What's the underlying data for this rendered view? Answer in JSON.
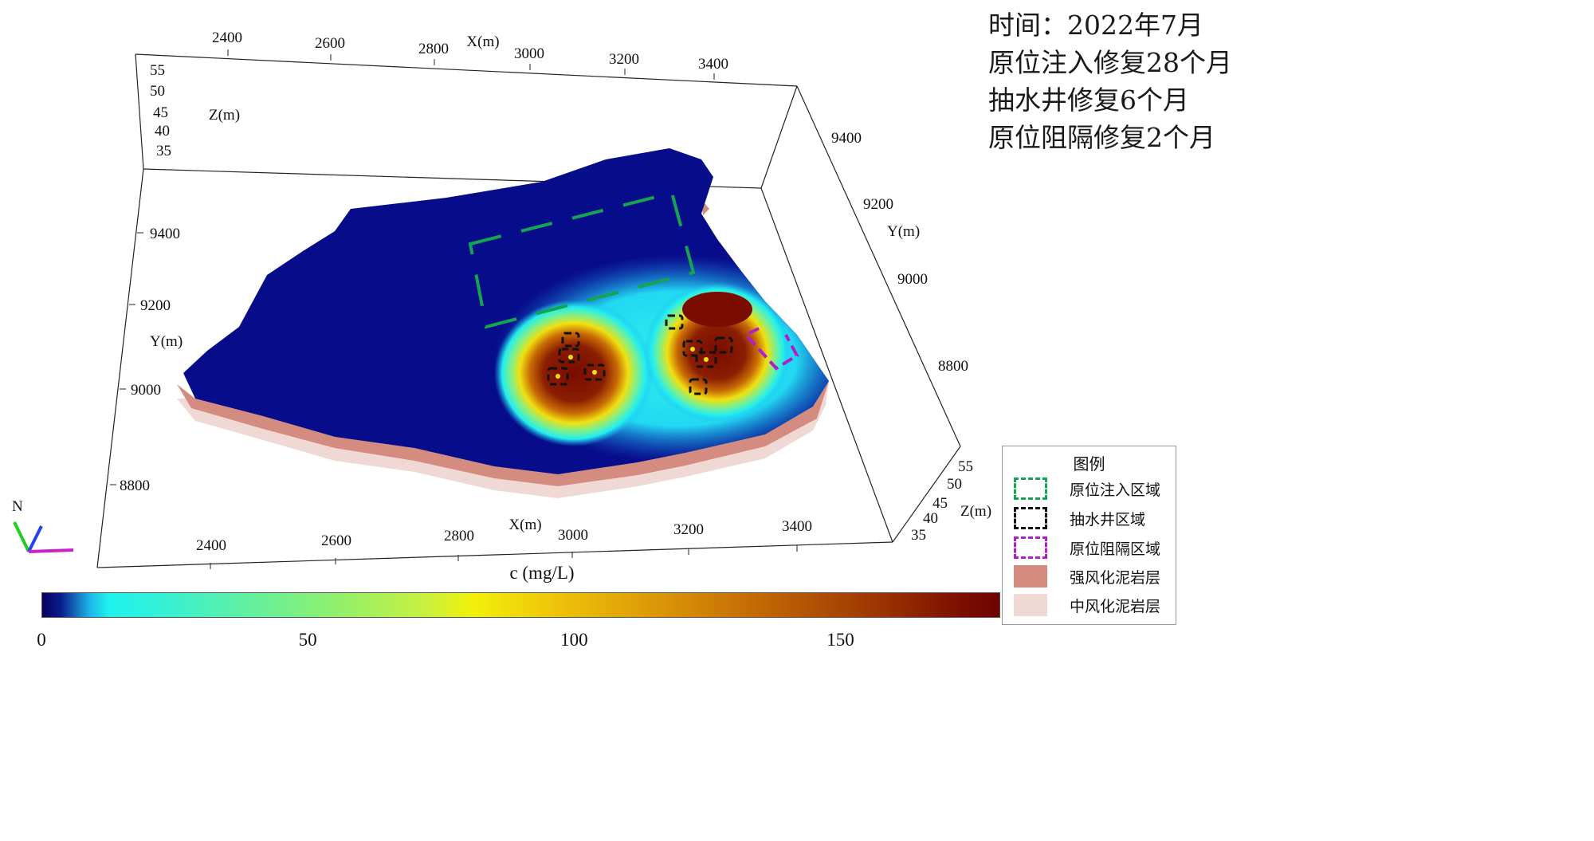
{
  "info": {
    "lines": [
      "时间：2022年7月",
      "原位注入修复28个月",
      "抽水井修复6个月",
      "原位阻隔修复2个月"
    ]
  },
  "axes": {
    "top_x_ticks": [
      "2400",
      "2600",
      "2800",
      "3000",
      "3200",
      "3400"
    ],
    "top_x_label": "X(m)",
    "bottom_x_ticks": [
      "2400",
      "2600",
      "2800",
      "3000",
      "3200",
      "3400"
    ],
    "bottom_x_label": "X(m)",
    "left_y_ticks": [
      "9400",
      "9200",
      "9000",
      "8800"
    ],
    "left_y_label": "Y(m)",
    "right_y_ticks": [
      "9400",
      "9200",
      "9000",
      "8800"
    ],
    "right_y_label": "Y(m)",
    "left_z_ticks": [
      "55",
      "50",
      "45",
      "40",
      "35"
    ],
    "left_z_label": "Z(m)",
    "right_z_ticks": [
      "55",
      "50",
      "45",
      "40",
      "35"
    ],
    "right_z_label": "Z(m)"
  },
  "compass": {
    "label": "N"
  },
  "colorbar": {
    "title": "c (mg/L)",
    "ticks": [
      "0",
      "50",
      "100",
      "150"
    ],
    "min": 0,
    "max": 180
  },
  "legend": {
    "title": "图例",
    "items": [
      {
        "label": "原位注入区域",
        "symbol": "green-dashed-box",
        "color": "#14a550"
      },
      {
        "label": "抽水井区域",
        "symbol": "black-dashed-box",
        "color": "#111111"
      },
      {
        "label": "原位阻隔区域",
        "symbol": "purple-dashed-box",
        "color": "#b020c8"
      },
      {
        "label": "强风化泥岩层",
        "symbol": "filled-box",
        "color": "#d48c80"
      },
      {
        "label": "中风化泥岩层",
        "symbol": "filled-box",
        "color": "#f0d8d4"
      }
    ]
  },
  "colors": {
    "background_plume": "#070d8a",
    "strong_weathered": "#d48c80",
    "medium_weathered": "#f0d8d4"
  }
}
